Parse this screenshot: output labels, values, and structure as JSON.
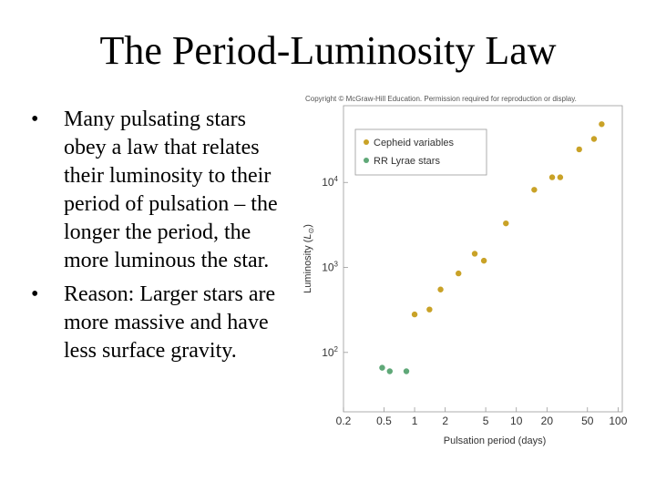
{
  "slide": {
    "title": "The Period-Luminosity Law",
    "bullets": [
      "Many pulsating stars obey a law that relates their luminosity to their period of pulsation – the longer the period, the more luminous the star.",
      "Reason: Larger stars are more massive and have less surface gravity."
    ],
    "bullet_symbol": "•"
  },
  "figure": {
    "copyright": "Copyright © McGraw-Hill Education. Permission required for reproduction or display."
  },
  "chart_data": {
    "type": "scatter",
    "title": "",
    "xlabel": "Pulsation period (days)",
    "ylabel_main": "Luminosity (",
    "ylabel_symbol": "L",
    "ylabel_sub": "⊙",
    "ylabel_close": ")",
    "x_scale": "log",
    "y_scale": "log",
    "xlim": [
      0.2,
      110
    ],
    "ylim": [
      20,
      80000
    ],
    "x_ticks": [
      {
        "value": 0.2,
        "label": "0.2"
      },
      {
        "value": 0.5,
        "label": "0.5"
      },
      {
        "value": 1,
        "label": "1"
      },
      {
        "value": 2,
        "label": "2"
      },
      {
        "value": 5,
        "label": "5"
      },
      {
        "value": 10,
        "label": "10"
      },
      {
        "value": 20,
        "label": "20"
      },
      {
        "value": 50,
        "label": "50"
      },
      {
        "value": 100,
        "label": "100"
      }
    ],
    "y_ticks": [
      {
        "value": 100,
        "base": "10",
        "exp": "2"
      },
      {
        "value": 1000,
        "base": "10",
        "exp": "3"
      },
      {
        "value": 10000,
        "base": "10",
        "exp": "4"
      }
    ],
    "grid": false,
    "legend_position": "top-left",
    "series": [
      {
        "name": "Cepheid variables",
        "color": "#c9a227",
        "points": [
          {
            "x": 1.0,
            "y": 280
          },
          {
            "x": 1.4,
            "y": 320
          },
          {
            "x": 1.8,
            "y": 550
          },
          {
            "x": 2.7,
            "y": 850
          },
          {
            "x": 3.9,
            "y": 1450
          },
          {
            "x": 4.8,
            "y": 1200
          },
          {
            "x": 7.9,
            "y": 3300
          },
          {
            "x": 15,
            "y": 8200
          },
          {
            "x": 22.5,
            "y": 11500
          },
          {
            "x": 27,
            "y": 11500
          },
          {
            "x": 41.5,
            "y": 24500
          },
          {
            "x": 58,
            "y": 32500
          },
          {
            "x": 69,
            "y": 48500
          }
        ]
      },
      {
        "name": "RR Lyrae stars",
        "color": "#5fa878",
        "points": [
          {
            "x": 0.48,
            "y": 66
          },
          {
            "x": 0.57,
            "y": 60
          },
          {
            "x": 0.83,
            "y": 60
          }
        ]
      }
    ]
  }
}
